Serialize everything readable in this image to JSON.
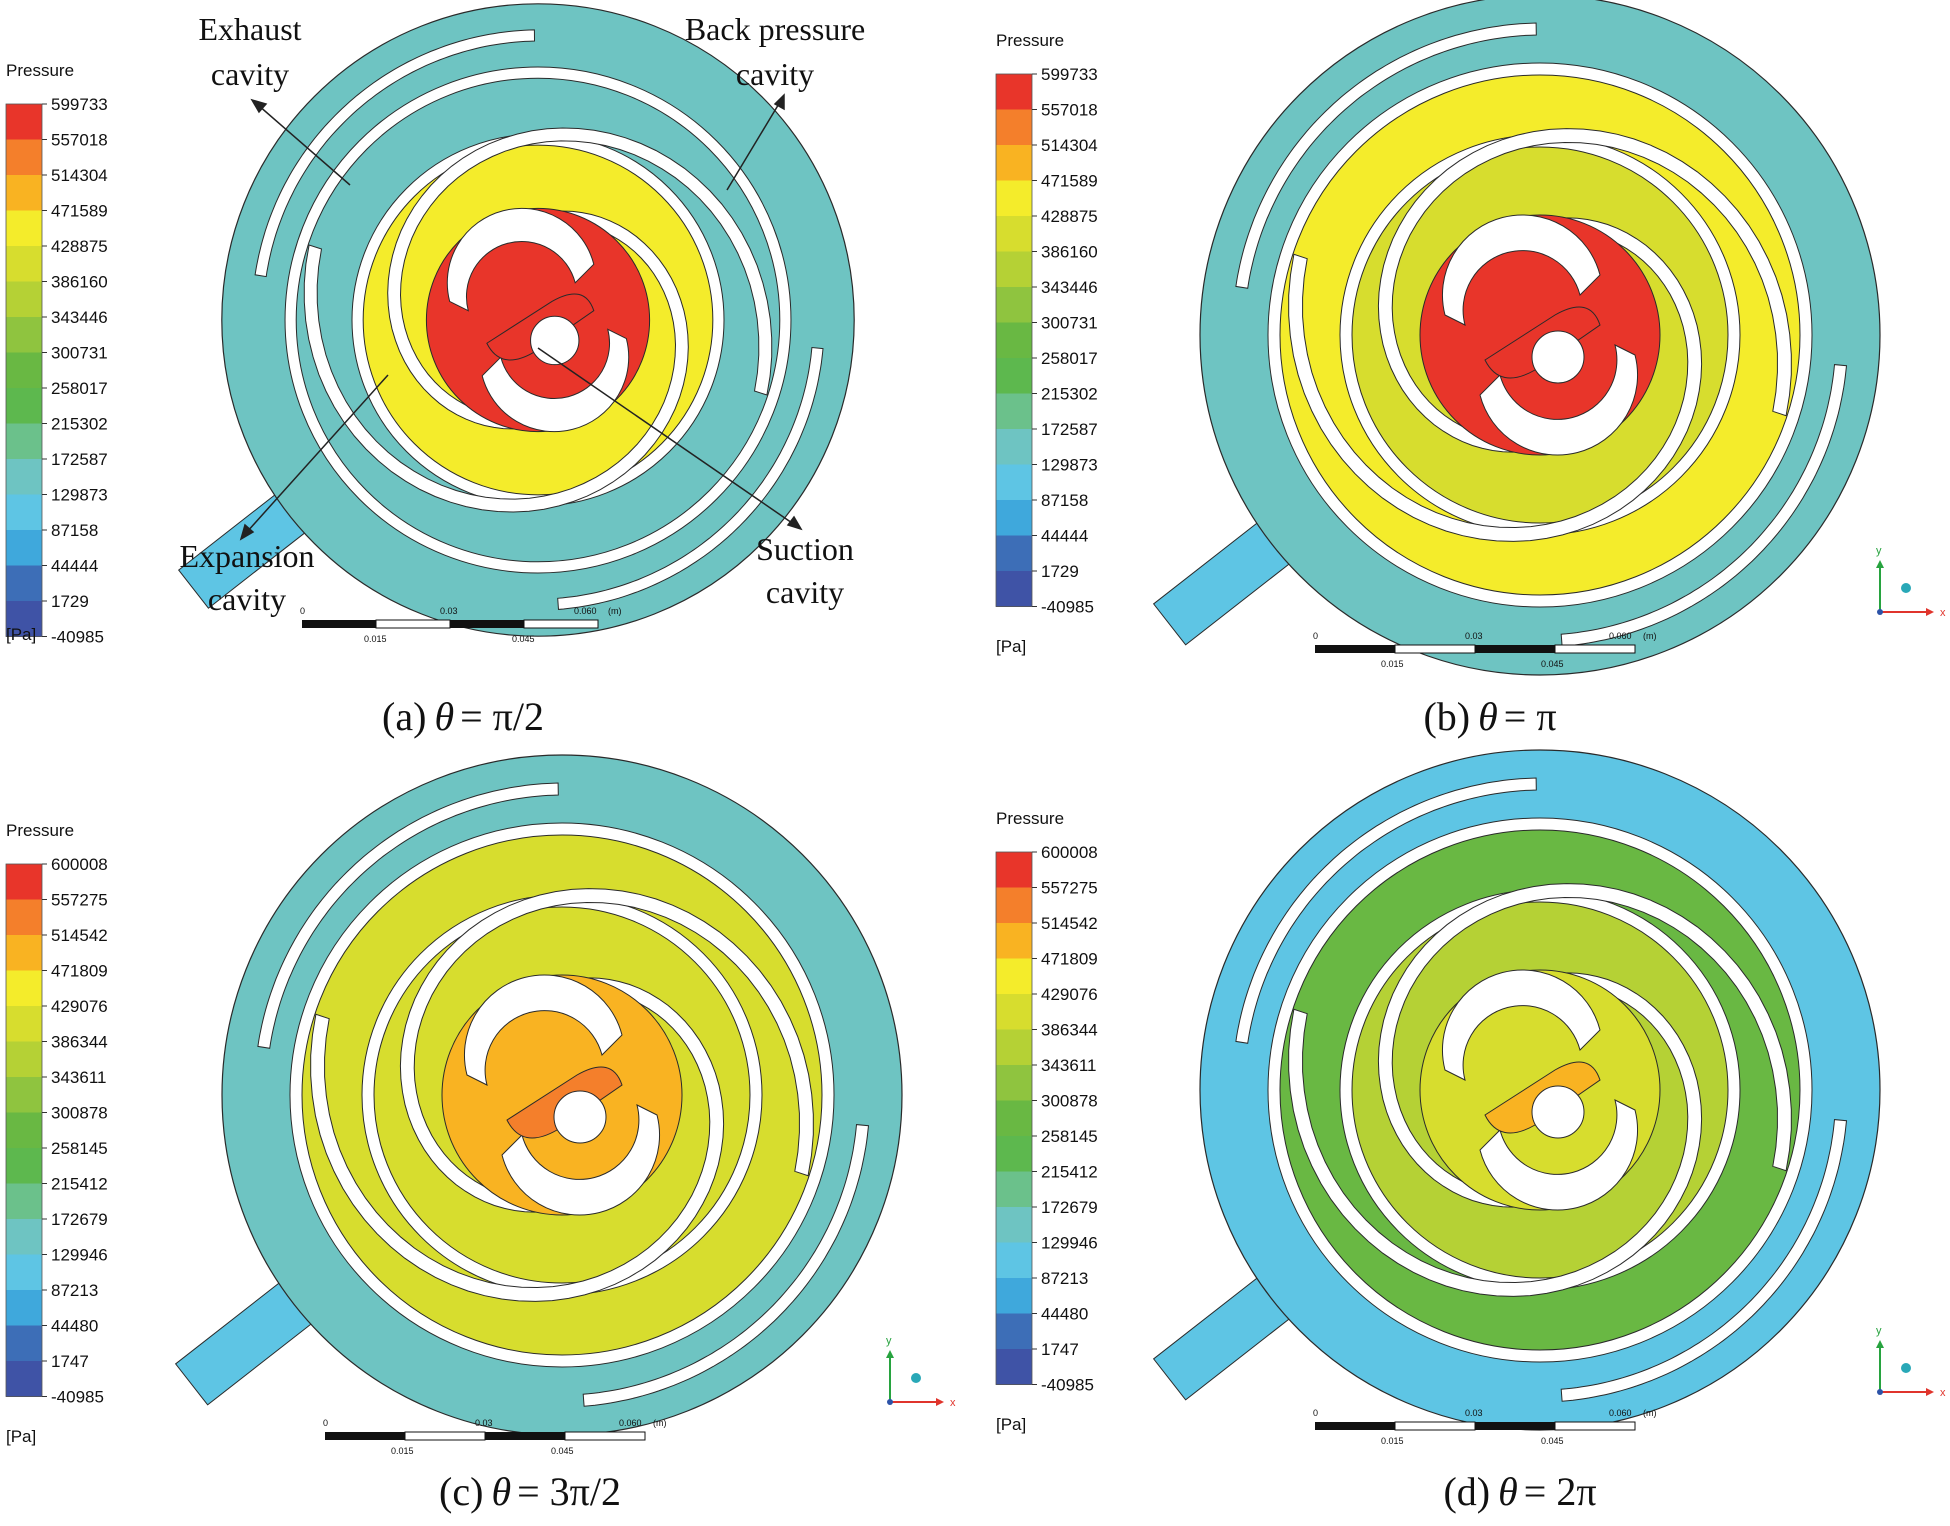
{
  "legend_title": "Pressure",
  "legend_unit": "[Pa]",
  "colors": {
    "bands": [
      "#e8352a",
      "#f47f2b",
      "#f9b322",
      "#f4ec2b",
      "#d7dd2e",
      "#b5d135",
      "#8fc43f",
      "#69b843",
      "#5db84e",
      "#6bc18b",
      "#6ec4c2",
      "#5ec5e4",
      "#3fa8dc",
      "#3d6eb7",
      "#3f53a6"
    ],
    "line": "#222222",
    "white": "#ffffff",
    "axis_y": "#27a33f",
    "axis_x": "#e0342c",
    "axis_z": "#29a8b7"
  },
  "scale": {
    "ticks_top": [
      "0",
      "0.03",
      "0.060"
    ],
    "unit": "(m)",
    "ticks_bottom": [
      "0.015",
      "0.045"
    ]
  },
  "axes": {
    "y": "y",
    "x": "x"
  },
  "annotations": {
    "exhaust_1": "Exhaust",
    "exhaust_2": "cavity",
    "back_1": "Back pressure",
    "back_2": "cavity",
    "expansion_1": "Expansion",
    "expansion_2": "cavity",
    "suction_1": "Suction",
    "suction_2": "cavity"
  },
  "panels": [
    {
      "id": "a",
      "caption_prefix": "(a)",
      "caption_theta": "θ",
      "caption_rest": "= π/2",
      "legend_values": [
        "599733",
        "557018",
        "514304",
        "471589",
        "428875",
        "386160",
        "343446",
        "300731",
        "258017",
        "215302",
        "172587",
        "129873",
        "87158",
        "44444",
        "1729",
        "-40985"
      ],
      "zones": {
        "outer": 10,
        "inlet": 11,
        "c2": 10,
        "c1": 3,
        "center": 0,
        "blob": 0
      }
    },
    {
      "id": "b",
      "caption_prefix": "(b)",
      "caption_theta": "θ",
      "caption_rest": "= π",
      "legend_values": [
        "599733",
        "557018",
        "514304",
        "471589",
        "428875",
        "386160",
        "343446",
        "300731",
        "258017",
        "215302",
        "172587",
        "129873",
        "87158",
        "44444",
        "1729",
        "-40985"
      ],
      "zones": {
        "outer": 10,
        "inlet": 11,
        "c2": 3,
        "c1": 4,
        "center": 0,
        "blob": 0
      }
    },
    {
      "id": "c",
      "caption_prefix": "(c)",
      "caption_theta": "θ",
      "caption_rest": "= 3π/2",
      "legend_values": [
        "600008",
        "557275",
        "514542",
        "471809",
        "429076",
        "386344",
        "343611",
        "300878",
        "258145",
        "215412",
        "172679",
        "129946",
        "87213",
        "44480",
        "1747",
        "-40985"
      ],
      "zones": {
        "outer": 10,
        "inlet": 11,
        "c2": 4,
        "c1": 4,
        "center": 2,
        "blob": 1
      }
    },
    {
      "id": "d",
      "caption_prefix": "(d)",
      "caption_theta": "θ",
      "caption_rest": "= 2π",
      "legend_values": [
        "600008",
        "557275",
        "514542",
        "471809",
        "429076",
        "386344",
        "343611",
        "300878",
        "258145",
        "215412",
        "172679",
        "129946",
        "87213",
        "44480",
        "1747",
        "-40985"
      ],
      "zones": {
        "outer": 11,
        "inlet": 11,
        "c2": 7,
        "c1": 5,
        "center": 4,
        "blob": 2
      }
    }
  ]
}
